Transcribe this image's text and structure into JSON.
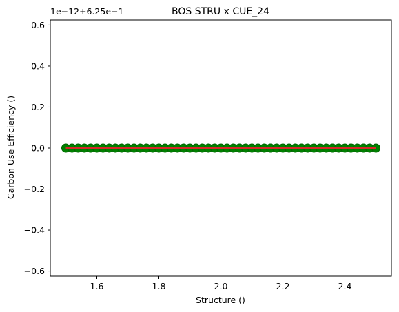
{
  "chart_data": {
    "type": "scatter",
    "title": "BOS STRU x CUE_24",
    "xlabel": "Structure ()",
    "ylabel": "Carbon Use Efficiency ()",
    "y_offset_label": "1e−12+6.25e−1",
    "xlim": [
      1.45,
      2.55
    ],
    "ylim": [
      -0.625,
      0.625
    ],
    "x_ticks": [
      {
        "value": 1.6,
        "label": "1.6"
      },
      {
        "value": 1.8,
        "label": "1.8"
      },
      {
        "value": 2.0,
        "label": "2.0"
      },
      {
        "value": 2.2,
        "label": "2.2"
      },
      {
        "value": 2.4,
        "label": "2.4"
      }
    ],
    "y_ticks": [
      {
        "value": -0.6,
        "label": "−0.6"
      },
      {
        "value": -0.4,
        "label": "−0.4"
      },
      {
        "value": -0.2,
        "label": "−0.2"
      },
      {
        "value": 0.0,
        "label": "0.0"
      },
      {
        "value": 0.2,
        "label": "0.2"
      },
      {
        "value": 0.4,
        "label": "0.4"
      },
      {
        "value": 0.6,
        "label": "0.6"
      }
    ],
    "grid": false,
    "series": [
      {
        "kind": "points",
        "color": "#008000",
        "edge_color": "#006400",
        "x": [
          1.5,
          1.52,
          1.54,
          1.56,
          1.58,
          1.6,
          1.62,
          1.64,
          1.66,
          1.68,
          1.7,
          1.72,
          1.74,
          1.76,
          1.78,
          1.8,
          1.82,
          1.84,
          1.86,
          1.88,
          1.9,
          1.92,
          1.94,
          1.96,
          1.98,
          2.0,
          2.02,
          2.04,
          2.06,
          2.08,
          2.1,
          2.12,
          2.14,
          2.16,
          2.18,
          2.2,
          2.22,
          2.24,
          2.26,
          2.28,
          2.3,
          2.32,
          2.34,
          2.36,
          2.38,
          2.4,
          2.42,
          2.44,
          2.46,
          2.48,
          2.5
        ],
        "y": [
          0,
          0,
          0,
          0,
          0,
          0,
          0,
          0,
          0,
          0,
          0,
          0,
          0,
          0,
          0,
          0,
          0,
          0,
          0,
          0,
          0,
          0,
          0,
          0,
          0,
          0,
          0,
          0,
          0,
          0,
          0,
          0,
          0,
          0,
          0,
          0,
          0,
          0,
          0,
          0,
          0,
          0,
          0,
          0,
          0,
          0,
          0,
          0,
          0,
          0,
          0
        ]
      },
      {
        "kind": "line",
        "color": "#d62728",
        "x": [
          1.5,
          2.5
        ],
        "y": [
          0,
          0
        ]
      }
    ]
  }
}
